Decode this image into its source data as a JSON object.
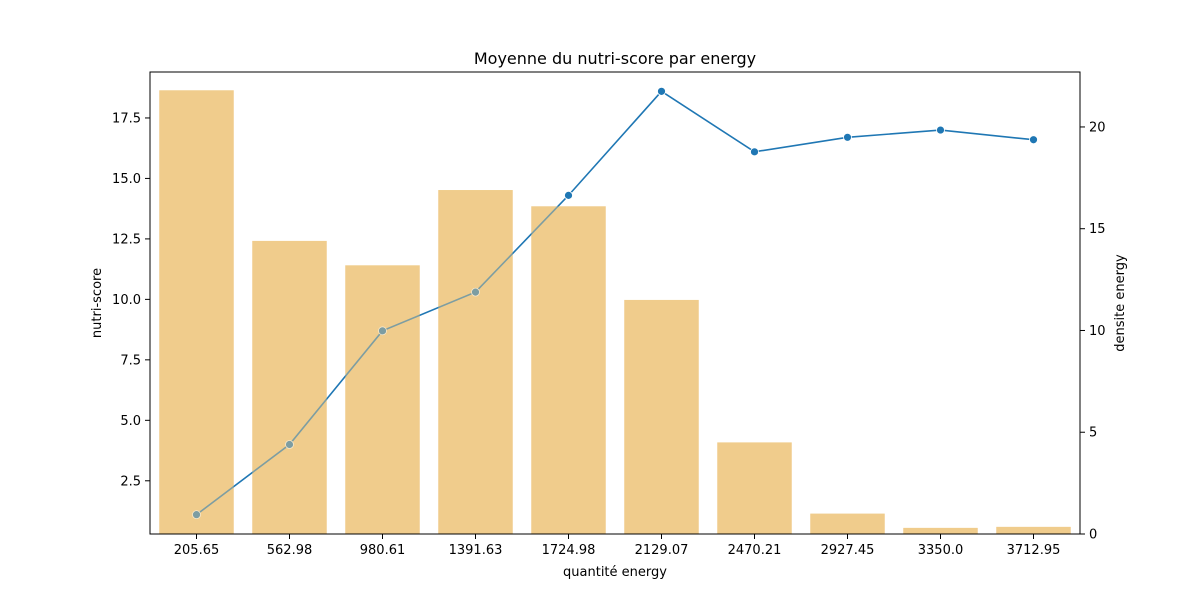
{
  "chart_data": {
    "type": "bar",
    "title": "Moyenne du nutri-score par energy",
    "xlabel": "quantité energy",
    "ylabel_left": "nutri-score",
    "ylabel_right": "densite energy",
    "categories": [
      "205.65",
      "562.98",
      "980.61",
      "1391.63",
      "1724.98",
      "2129.07",
      "2470.21",
      "2927.45",
      "3350.0",
      "3712.95"
    ],
    "left_axis": {
      "ylim": [
        0.3,
        19.4
      ],
      "ticks": [
        2.5,
        5.0,
        7.5,
        10.0,
        12.5,
        15.0,
        17.5
      ],
      "tick_labels": [
        "2.5",
        "5.0",
        "7.5",
        "10.0",
        "12.5",
        "15.0",
        "17.5"
      ]
    },
    "right_axis": {
      "ylim": [
        0,
        22.7
      ],
      "ticks": [
        0,
        5,
        10,
        15,
        20
      ],
      "tick_labels": [
        "0",
        "5",
        "10",
        "15",
        "20"
      ]
    },
    "series": [
      {
        "type": "bar",
        "axis": "right",
        "color": "#f0cd8c",
        "values": [
          21.8,
          14.4,
          13.2,
          16.9,
          16.1,
          11.5,
          4.5,
          1.0,
          0.3,
          0.35
        ]
      },
      {
        "type": "line",
        "axis": "left",
        "color": "#1f77b4",
        "marker": "circle",
        "values": [
          1.1,
          4.0,
          8.7,
          10.3,
          14.3,
          18.6,
          16.1,
          16.7,
          17.0,
          16.6
        ]
      }
    ],
    "grid": false,
    "legend": "none"
  }
}
